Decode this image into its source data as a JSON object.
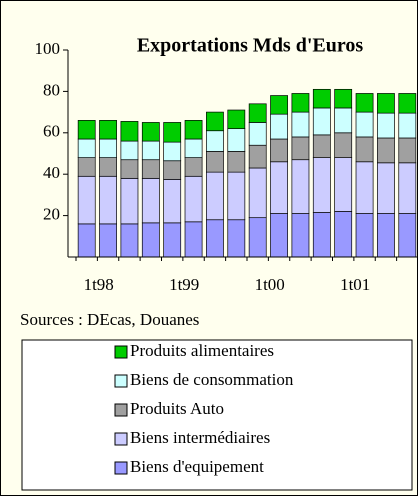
{
  "chart_data": {
    "type": "stacked_bar",
    "title": "Exportations Mds d'Euros",
    "annotation": "Sources : DEcas, Douanes",
    "categories": [
      "1t98",
      null,
      null,
      null,
      "1t99",
      null,
      null,
      null,
      "1t00",
      null,
      null,
      null,
      "1t01",
      null,
      null,
      null
    ],
    "series": [
      {
        "name": "Biens d'equipement",
        "color": "#9999ff",
        "values": [
          16,
          16,
          16,
          16.5,
          16.5,
          17,
          18,
          18,
          19,
          21,
          21,
          21.5,
          22,
          21,
          21,
          21
        ]
      },
      {
        "name": "Biens intermédiaires",
        "color": "#ccccff",
        "values": [
          23,
          23,
          22,
          21.5,
          21,
          22,
          23,
          23,
          24,
          25,
          26,
          26.5,
          26,
          25,
          24.5,
          24.5
        ]
      },
      {
        "name": "Produits Auto",
        "color": "#a0a0a0",
        "values": [
          9,
          9,
          9,
          9,
          9,
          9,
          10,
          10,
          11,
          11,
          11,
          11,
          12,
          12,
          12,
          12
        ]
      },
      {
        "name": "Biens de consommation",
        "color": "#ccffff",
        "values": [
          9,
          9,
          9,
          9,
          9,
          9,
          10,
          11,
          11,
          12,
          12,
          13,
          12,
          12,
          12,
          12
        ]
      },
      {
        "name": "Produits alimentaires",
        "color": "#00cc00",
        "values": [
          9,
          9,
          9.5,
          9,
          9.5,
          9,
          9,
          9,
          9,
          9,
          9,
          9,
          9,
          9,
          9.5,
          9.5
        ]
      }
    ],
    "ylim": [
      0,
      100
    ],
    "yticks": [
      20,
      40,
      60,
      80,
      100
    ],
    "grid": false
  }
}
